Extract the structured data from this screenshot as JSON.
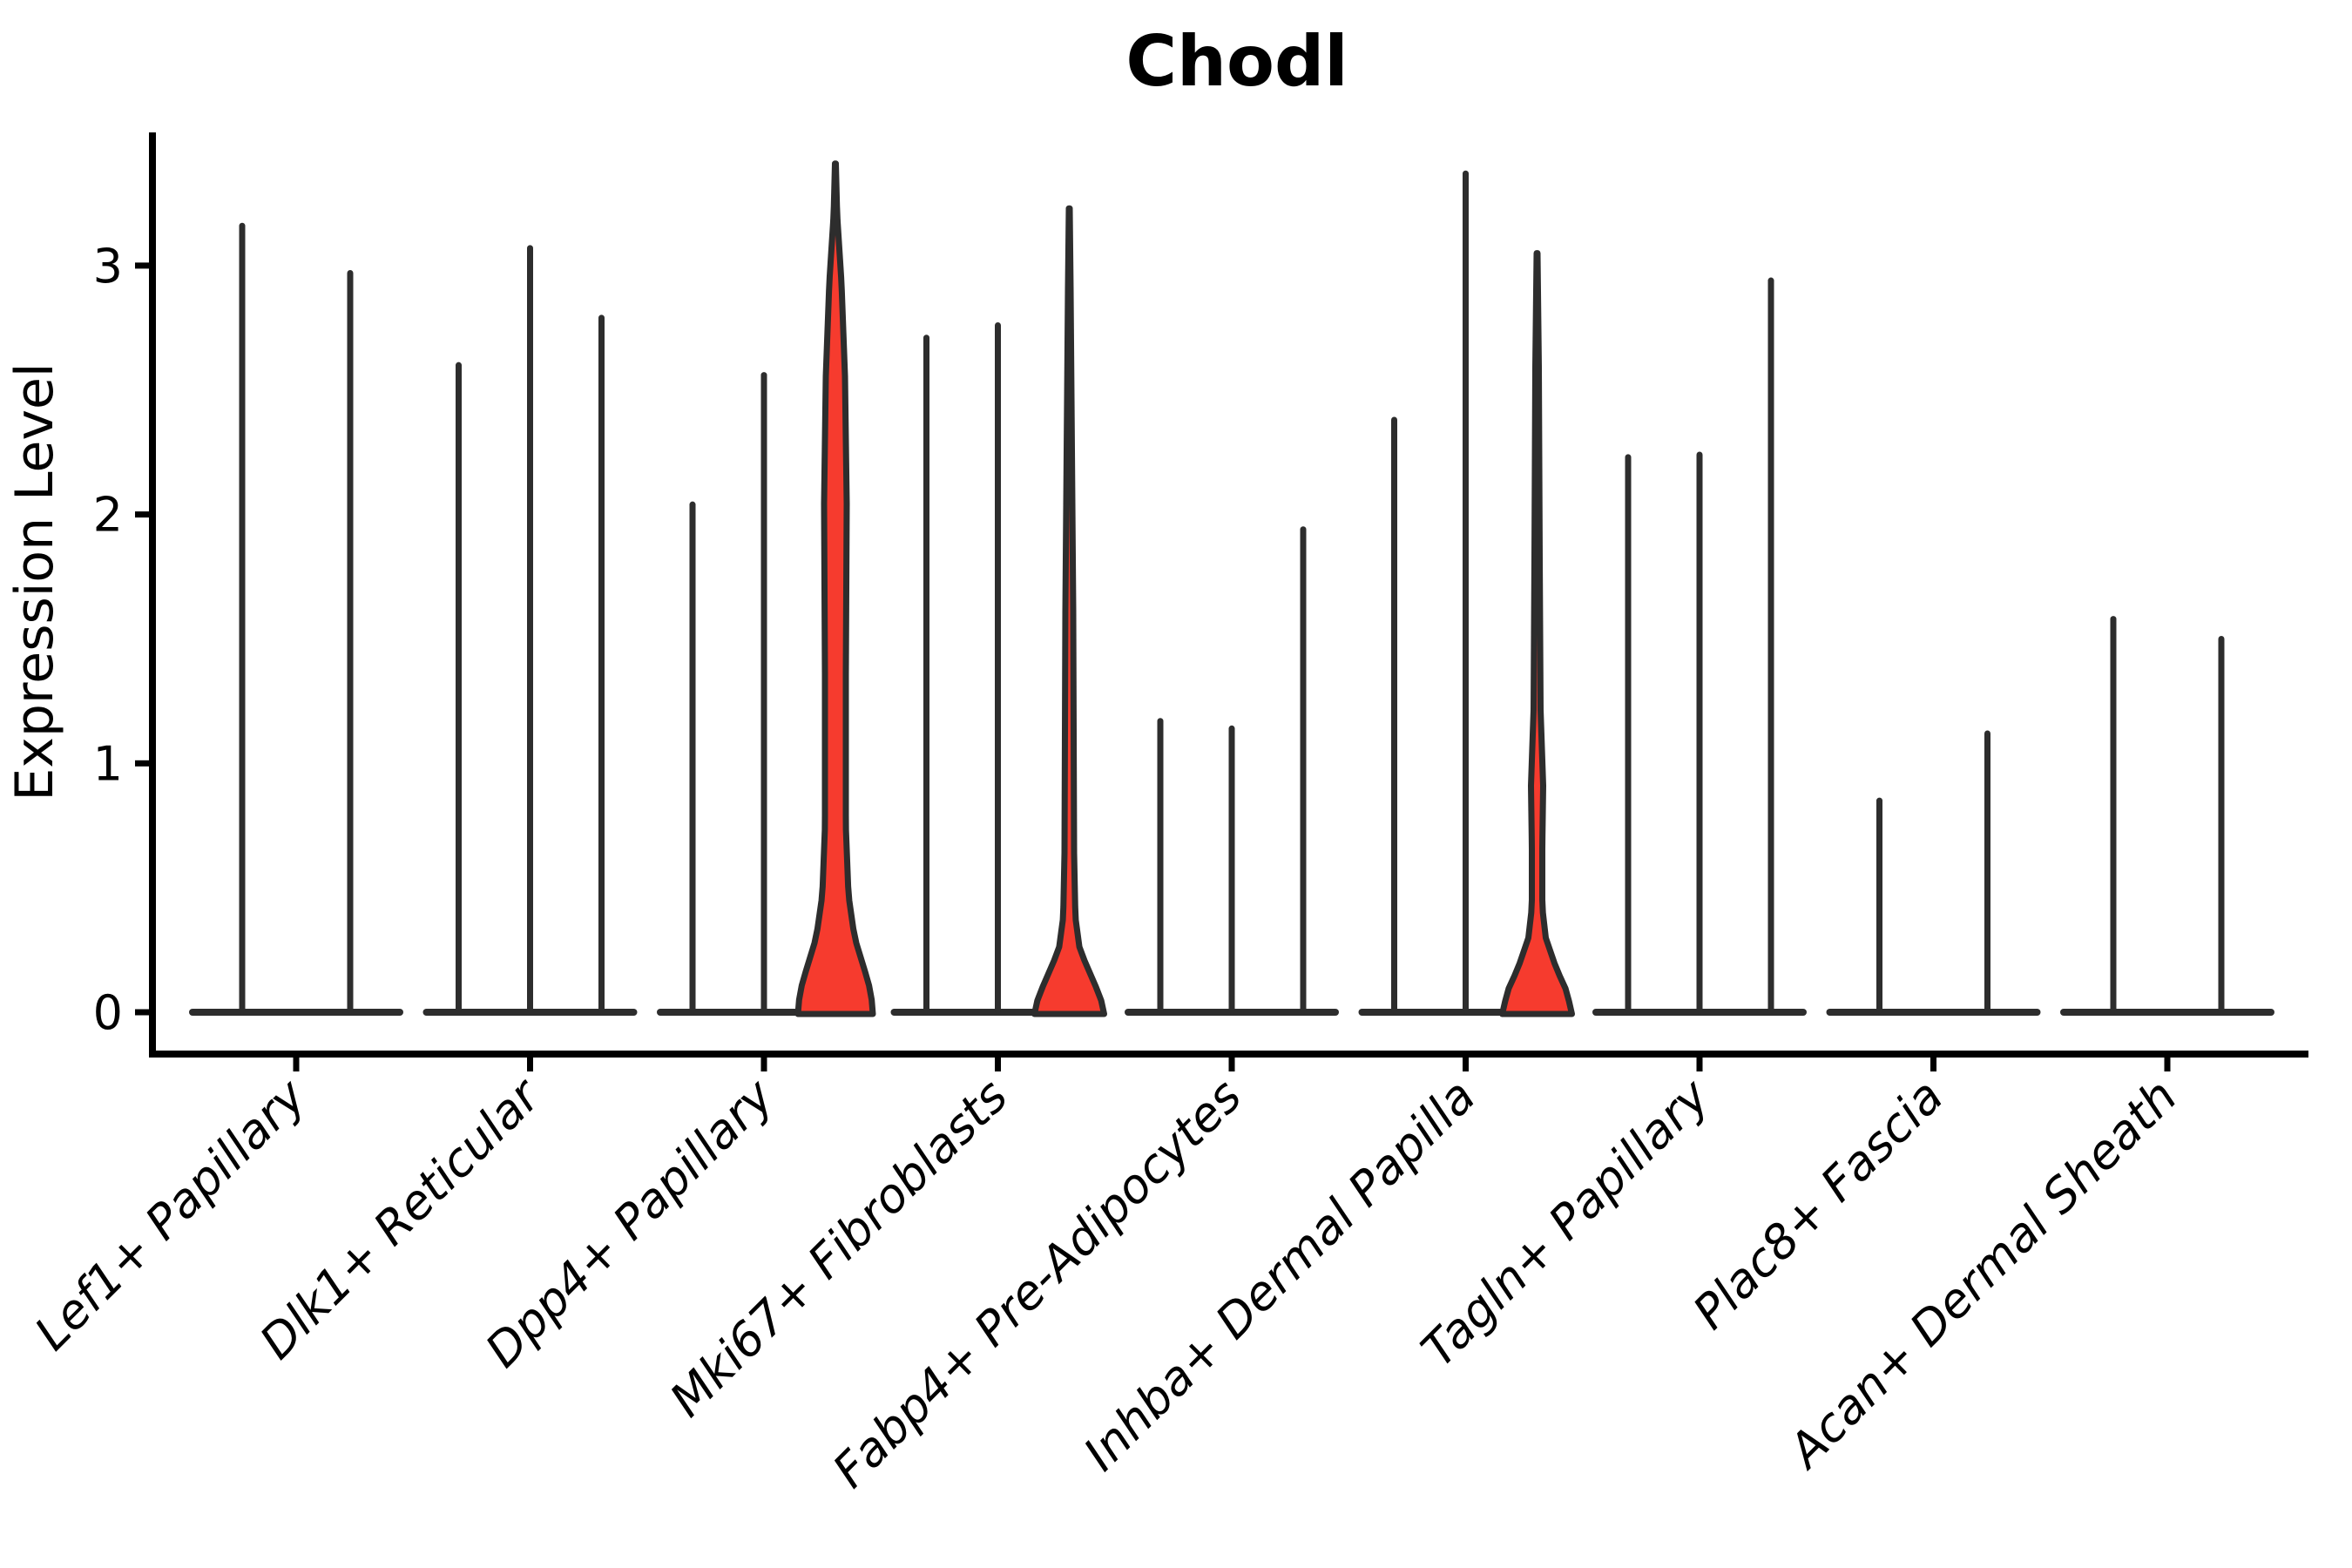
{
  "chart_data": {
    "type": "violin",
    "title": "Chodl",
    "ylabel": "Expression Level",
    "xlabel": "",
    "yticks": [
      0,
      1,
      2,
      3
    ],
    "ylim": [
      -0.17,
      3.53
    ],
    "grid": false,
    "legend": "none",
    "categories": [
      "Lef1+ Papillary",
      "Dlk1+ Reticular",
      "Dpp4+ Papillary",
      "Mki67+ Fibroblasts",
      "Fabp4+ Pre-Adipocytes",
      "Inhba+ Dermal Papilla",
      "Tagln+ Papillary",
      "Plac8+ Fascia",
      "Acan+ Dermal Sheath"
    ],
    "groups": [
      {
        "category": "Lef1+ Papillary",
        "violins": [
          {
            "max_expression": 3.16,
            "highlighted": false
          },
          {
            "max_expression": 2.97,
            "highlighted": false
          }
        ]
      },
      {
        "category": "Dlk1+ Reticular",
        "violins": [
          {
            "max_expression": 2.6,
            "highlighted": false
          },
          {
            "max_expression": 3.07,
            "highlighted": false
          },
          {
            "max_expression": 2.79,
            "highlighted": false
          }
        ]
      },
      {
        "category": "Dpp4+ Papillary",
        "violins": [
          {
            "max_expression": 2.04,
            "highlighted": false
          },
          {
            "max_expression": 2.56,
            "highlighted": false
          },
          {
            "max_expression": 3.41,
            "highlighted": true,
            "body": "wide"
          }
        ]
      },
      {
        "category": "Mki67+ Fibroblasts",
        "violins": [
          {
            "max_expression": 2.71,
            "highlighted": false
          },
          {
            "max_expression": 2.76,
            "highlighted": false
          },
          {
            "max_expression": 3.23,
            "highlighted": true,
            "body": "narrow"
          }
        ]
      },
      {
        "category": "Fabp4+ Pre-Adipocytes",
        "violins": [
          {
            "max_expression": 1.17,
            "highlighted": false
          },
          {
            "max_expression": 1.14,
            "highlighted": false
          },
          {
            "max_expression": 1.94,
            "highlighted": false
          }
        ]
      },
      {
        "category": "Inhba+ Dermal Papilla",
        "violins": [
          {
            "max_expression": 2.38,
            "highlighted": false
          },
          {
            "max_expression": 3.37,
            "highlighted": false
          },
          {
            "max_expression": 3.05,
            "highlighted": true,
            "body": "narrow-bulge"
          }
        ]
      },
      {
        "category": "Tagln+ Papillary",
        "violins": [
          {
            "max_expression": 2.23,
            "highlighted": false
          },
          {
            "max_expression": 2.24,
            "highlighted": false
          },
          {
            "max_expression": 2.94,
            "highlighted": false
          }
        ]
      },
      {
        "category": "Plac8+ Fascia",
        "violins": [
          {
            "max_expression": 0.85,
            "highlighted": false
          },
          {
            "max_expression": 1.12,
            "highlighted": false
          }
        ]
      },
      {
        "category": "Acan+ Dermal Sheath",
        "violins": [
          {
            "max_expression": 1.58,
            "highlighted": false
          },
          {
            "max_expression": 1.5,
            "highlighted": false
          }
        ]
      }
    ],
    "colors": {
      "highlight_fill": "#f63b2e",
      "violin_outline": "#2d2d2d",
      "axis": "#000000",
      "background": "#ffffff"
    }
  }
}
